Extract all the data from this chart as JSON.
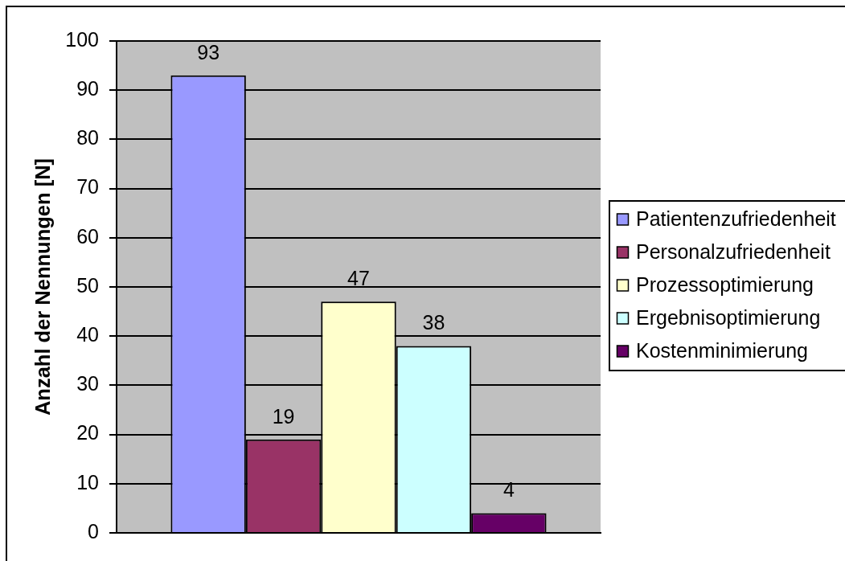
{
  "chart_data": {
    "type": "bar",
    "ylabel": "Anzahl der Nennungen [N]",
    "categories": [
      null
    ],
    "series": [
      {
        "name": "Patientenzufriedenheit",
        "color": "#9999ff",
        "values": [
          93
        ]
      },
      {
        "name": "Personalzufriedenheit",
        "color": "#993366",
        "values": [
          19
        ]
      },
      {
        "name": "Prozessoptimierung",
        "color": "#ffffcc",
        "values": [
          47
        ]
      },
      {
        "name": "Ergebnisoptimierung",
        "color": "#ccffff",
        "values": [
          38
        ]
      },
      {
        "name": "Kostenminimierung",
        "color": "#660066",
        "values": [
          4
        ]
      }
    ],
    "ylim": [
      0,
      100
    ],
    "yticks": [
      0,
      10,
      20,
      30,
      40,
      50,
      60,
      70,
      80,
      90,
      100
    ],
    "grid": "y",
    "legend": "right",
    "data_labels": true
  }
}
